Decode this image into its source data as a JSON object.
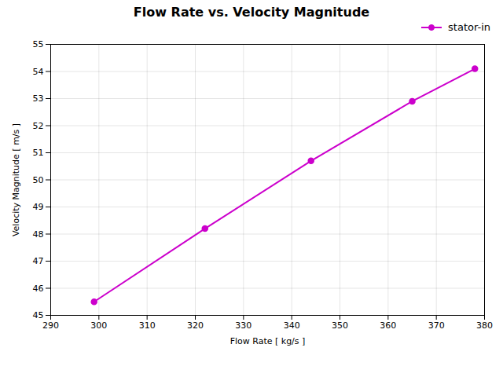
{
  "chart_data": {
    "type": "line",
    "title": "Flow Rate vs. Velocity Magnitude",
    "xlabel": "Flow Rate [ kg/s ]",
    "ylabel": "Velocity Magnitude [ m/s ]",
    "x": [
      299,
      322,
      344,
      365,
      378
    ],
    "series": [
      {
        "name": "stator-in",
        "color": "#cc00cc",
        "marker": "circle",
        "values": [
          45.5,
          48.2,
          50.7,
          52.9,
          54.1
        ]
      }
    ],
    "xlim": [
      290,
      380
    ],
    "ylim": [
      45,
      55
    ],
    "xticks": [
      290,
      300,
      310,
      320,
      330,
      340,
      350,
      360,
      370,
      380
    ],
    "yticks": [
      45,
      46,
      47,
      48,
      49,
      50,
      51,
      52,
      53,
      54,
      55
    ],
    "grid": true,
    "legend": "upper right"
  }
}
